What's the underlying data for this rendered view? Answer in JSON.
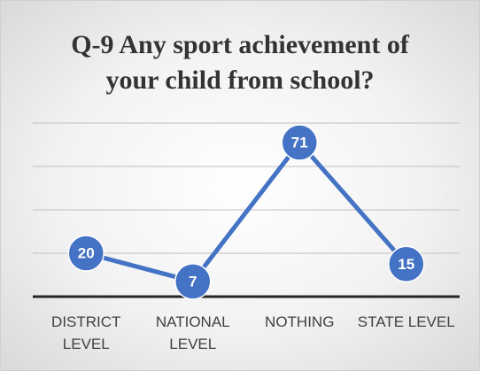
{
  "chart_data": {
    "type": "line",
    "title": "Q-9 Any sport achievement of your child from school?",
    "categories": [
      "DISTRICT LEVEL",
      "NATIONAL LEVEL",
      "NOTHING",
      "STATE LEVEL"
    ],
    "values": [
      20,
      7,
      71,
      15
    ],
    "color": "#4472c4",
    "ylim": [
      0,
      80
    ],
    "yticks": [
      0,
      20,
      40,
      60,
      80
    ],
    "grid": true
  }
}
